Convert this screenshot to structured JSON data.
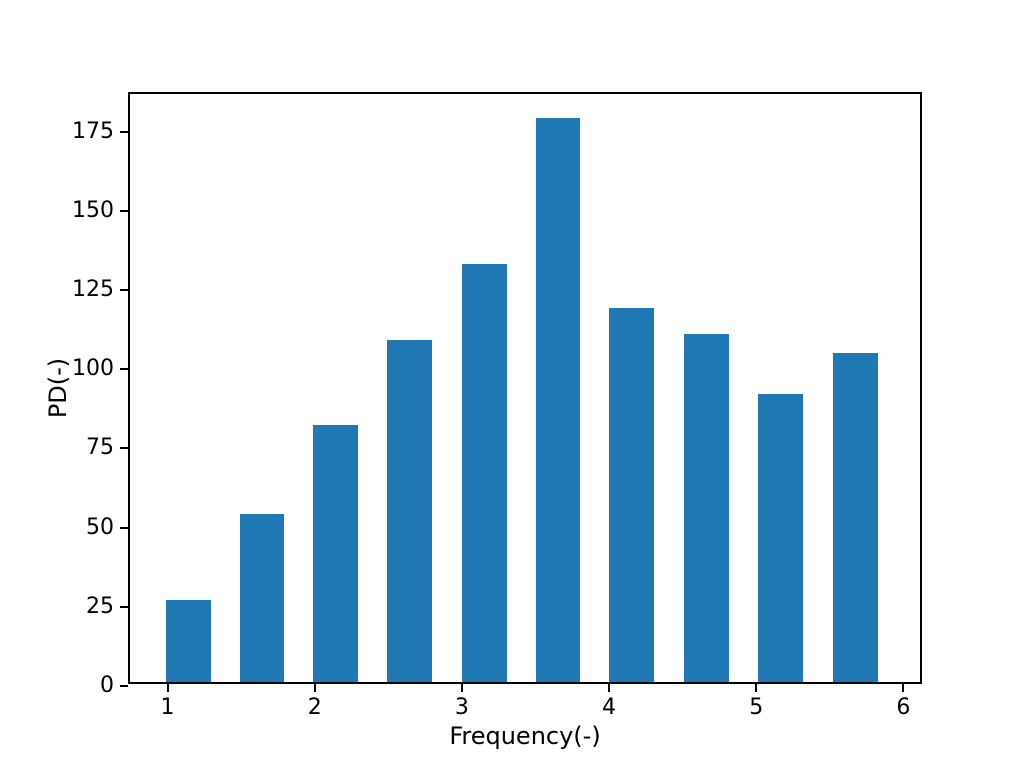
{
  "figure": {
    "background": "#ffffff",
    "text_color": "#000000"
  },
  "chart_data": {
    "type": "bar",
    "title": "",
    "xlabel": "Frequency(-)",
    "ylabel": "PD(-)",
    "bar_color": "#1f77b4",
    "values": [
      26,
      53,
      81,
      108,
      132,
      178,
      118,
      110,
      91,
      104
    ],
    "x_left_edges": [
      0.99,
      1.49,
      1.99,
      2.49,
      3.0,
      3.5,
      4.0,
      4.51,
      5.01,
      5.52
    ],
    "bar_width": 0.305,
    "xlim": [
      0.745,
      6.14
    ],
    "ylim": [
      0,
      186.9
    ],
    "xticks": [
      1,
      2,
      3,
      4,
      5,
      6
    ],
    "yticks": [
      0,
      25,
      50,
      75,
      100,
      125,
      150,
      175
    ],
    "grid": false,
    "legend": null
  }
}
